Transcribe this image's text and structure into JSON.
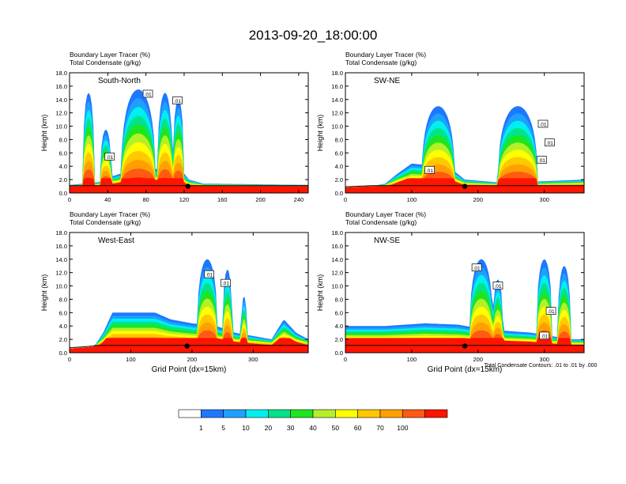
{
  "title": "2013-09-20_18:00:00",
  "chart_data": [
    {
      "type": "heatmap",
      "panel_title": "South-North",
      "header_lines": [
        "Boundary Layer Tracer   (%)",
        "Total Condensate   (g/kg)"
      ],
      "ylabel": "Height (km)",
      "xlabel": "",
      "ylim": [
        0,
        18
      ],
      "xlim": [
        0,
        250
      ],
      "xticks": [
        "0",
        "40",
        "80",
        "120",
        "160",
        "200",
        "240"
      ],
      "xtick_values": [
        0,
        40,
        80,
        120,
        160,
        200,
        240
      ],
      "yticks": [
        "0.0",
        "2.0",
        "4.0",
        "6.0",
        "8.0",
        "10.0",
        "12.0",
        "14.0",
        "16.0",
        "18.0"
      ],
      "contour_labels": [
        {
          "text": ".01",
          "x": 82,
          "y": 14.8
        },
        {
          "text": ".01",
          "x": 113,
          "y": 13.8
        },
        {
          "text": ".01",
          "x": 42,
          "y": 5.4
        }
      ],
      "marker": {
        "x": 124,
        "y": 1.0
      },
      "fill": {
        "base_tops": [
          [
            0,
            1.2
          ],
          [
            30,
            1.6
          ],
          [
            45,
            2.5
          ],
          [
            60,
            3.2
          ],
          [
            75,
            4.5
          ],
          [
            90,
            3.6
          ],
          [
            105,
            3.3
          ],
          [
            115,
            3.8
          ],
          [
            125,
            2.0
          ],
          [
            140,
            1.4
          ],
          [
            250,
            1.2
          ]
        ],
        "convection": [
          {
            "x_center": 38,
            "half_width": 6,
            "top": 9.5
          },
          {
            "x_center": 72,
            "half_width": 18,
            "top": 15.5
          },
          {
            "x_center": 100,
            "half_width": 8,
            "top": 15.0
          },
          {
            "x_center": 114,
            "half_width": 6,
            "top": 14.0
          },
          {
            "x_center": 20,
            "half_width": 6,
            "top": 15.0
          }
        ]
      }
    },
    {
      "type": "heatmap",
      "panel_title": "SW-NE",
      "header_lines": [
        "Boundary Layer Tracer   (%)",
        "Total Condensate   (g/kg)"
      ],
      "ylabel": "Height (km)",
      "xlabel": "",
      "ylim": [
        0,
        18
      ],
      "xlim": [
        0,
        360
      ],
      "xticks": [
        "0",
        "100",
        "200",
        "300"
      ],
      "xtick_values": [
        0,
        100,
        200,
        300
      ],
      "yticks": [
        "0.0",
        "2.0",
        "4.0",
        "6.0",
        "8.0",
        "10.0",
        "12.0",
        "14.0",
        "16.0",
        "18.0"
      ],
      "contour_labels": [
        {
          "text": ".01",
          "x": 298,
          "y": 10.3
        },
        {
          "text": ".01",
          "x": 308,
          "y": 7.5
        },
        {
          "text": ".01",
          "x": 296,
          "y": 4.9
        },
        {
          "text": ".01",
          "x": 127,
          "y": 3.4
        }
      ],
      "marker": {
        "x": 180,
        "y": 1.0
      },
      "fill": {
        "base_tops": [
          [
            0,
            0.8
          ],
          [
            40,
            1.0
          ],
          [
            60,
            1.4
          ],
          [
            80,
            3.0
          ],
          [
            100,
            4.4
          ],
          [
            120,
            4.2
          ],
          [
            140,
            4.8
          ],
          [
            160,
            3.6
          ],
          [
            180,
            2.0
          ],
          [
            240,
            1.5
          ],
          [
            360,
            2.0
          ]
        ],
        "convection": [
          {
            "x_center": 140,
            "half_width": 25,
            "top": 13.0
          },
          {
            "x_center": 260,
            "half_width": 30,
            "top": 13.0
          }
        ]
      }
    },
    {
      "type": "heatmap",
      "panel_title": "West-East",
      "header_lines": [
        "Boundary Layer Tracer   (%)",
        "Total Condensate   (g/kg)"
      ],
      "ylabel": "Height (km)",
      "xlabel": "Grid Point (dx=15km)",
      "ylim": [
        0,
        18
      ],
      "xlim": [
        0,
        390
      ],
      "xticks": [
        "0",
        "100",
        "200",
        "300"
      ],
      "xtick_values": [
        0,
        100,
        200,
        300
      ],
      "yticks": [
        "0.0",
        "2.0",
        "4.0",
        "6.0",
        "8.0",
        "10.0",
        "12.0",
        "14.0",
        "16.0",
        "18.0"
      ],
      "contour_labels": [
        {
          "text": ".01",
          "x": 228,
          "y": 11.7
        },
        {
          "text": ".01",
          "x": 255,
          "y": 10.4
        }
      ],
      "marker": {
        "x": 192,
        "y": 1.0
      },
      "fill": {
        "base_tops": [
          [
            0,
            0.6
          ],
          [
            40,
            0.9
          ],
          [
            55,
            3.0
          ],
          [
            70,
            6.0
          ],
          [
            140,
            6.0
          ],
          [
            165,
            5.0
          ],
          [
            200,
            4.4
          ],
          [
            240,
            4.0
          ],
          [
            270,
            3.0
          ],
          [
            330,
            2.0
          ],
          [
            350,
            5.0
          ],
          [
            370,
            3.0
          ],
          [
            390,
            2.0
          ]
        ],
        "convection": [
          {
            "x_center": 225,
            "half_width": 17,
            "top": 14.0
          },
          {
            "x_center": 258,
            "half_width": 8,
            "top": 12.5
          },
          {
            "x_center": 285,
            "half_width": 5,
            "top": 8.5
          }
        ]
      }
    },
    {
      "type": "heatmap",
      "panel_title": "NW-SE",
      "header_lines": [
        "Boundary Layer Tracer   (%)",
        "Total Condensate   (g/kg)"
      ],
      "ylabel": "Height (km)",
      "xlabel": "Grid Point (dx=15km)",
      "ylim": [
        0,
        18
      ],
      "xlim": [
        0,
        360
      ],
      "xticks": [
        "0",
        "100",
        "200",
        "300"
      ],
      "xtick_values": [
        0,
        100,
        200,
        300
      ],
      "yticks": [
        "0.0",
        "2.0",
        "4.0",
        "6.0",
        "8.0",
        "10.0",
        "12.0",
        "14.0",
        "16.0",
        "18.0"
      ],
      "contour_labels": [
        {
          "text": ".01",
          "x": 198,
          "y": 12.7
        },
        {
          "text": ".01",
          "x": 230,
          "y": 10.0
        },
        {
          "text": ".01",
          "x": 310,
          "y": 6.2
        },
        {
          "text": ".01",
          "x": 300,
          "y": 2.5
        }
      ],
      "marker": {
        "x": 180,
        "y": 1.0
      },
      "fill": {
        "base_tops": [
          [
            0,
            4.0
          ],
          [
            60,
            4.0
          ],
          [
            120,
            4.4
          ],
          [
            170,
            4.2
          ],
          [
            210,
            3.5
          ],
          [
            280,
            3.0
          ],
          [
            340,
            2.0
          ],
          [
            360,
            2.0
          ]
        ],
        "convection": [
          {
            "x_center": 205,
            "half_width": 18,
            "top": 14.0
          },
          {
            "x_center": 230,
            "half_width": 8,
            "top": 11.0
          },
          {
            "x_center": 300,
            "half_width": 12,
            "top": 14.0
          },
          {
            "x_center": 330,
            "half_width": 10,
            "top": 13.0
          }
        ]
      }
    }
  ],
  "contour_note": "Total Condensate Contours: .01 to .01 by .000",
  "colorbar": {
    "labels": [
      "1",
      "5",
      "10",
      "20",
      "30",
      "40",
      "50",
      "60",
      "70",
      "100"
    ],
    "colors": [
      "#ffffff",
      "#1e78ff",
      "#1ea0ff",
      "#00f0f0",
      "#00e38c",
      "#1ee61e",
      "#b4f028",
      "#ffff00",
      "#ffc800",
      "#ffa000",
      "#ff5a14",
      "#ff1400"
    ]
  }
}
